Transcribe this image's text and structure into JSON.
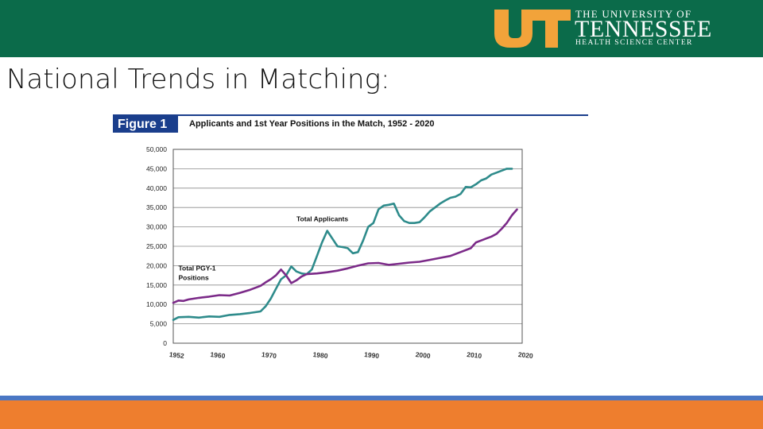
{
  "header": {
    "logo_mark": "UT",
    "logo_line1": "THE UNIVERSITY OF",
    "logo_line2": "TENNESSEE",
    "logo_line3": "HEALTH SCIENCE CENTER"
  },
  "slide": {
    "title": "National Trends in Matching:"
  },
  "colors": {
    "header": "#0b6b4a",
    "logo_orange": "#f2a33a",
    "applicants": "#2e8b8b",
    "positions": "#7b2a88",
    "figure_tab": "#1a3e8c",
    "bottom_blue": "#4a77c4",
    "bottom_orange": "#ee7e2e"
  },
  "chart_data": {
    "type": "line",
    "figure_label": "Figure 1",
    "title": "Applicants and 1st Year Positions in the Match, 1952 - 2020",
    "xlabel": "",
    "ylabel": "",
    "xlim": [
      1952,
      2020
    ],
    "ylim": [
      0,
      50000
    ],
    "grid": true,
    "y_ticks": [
      0,
      5000,
      10000,
      15000,
      20000,
      25000,
      30000,
      35000,
      40000,
      45000,
      50000
    ],
    "y_tick_labels": [
      "0",
      "5,000",
      "10,000",
      "15,000",
      "20,000",
      "25,000",
      "30,000",
      "35,000",
      "40,000",
      "45,000",
      "50,000"
    ],
    "x_ticks": [
      1952,
      1960,
      1970,
      1980,
      1990,
      2000,
      2010,
      2020
    ],
    "x_tick_labels": [
      "1952",
      "1960",
      "1970",
      "1980",
      "1990",
      "2000",
      "2010",
      "2020"
    ],
    "series": [
      {
        "name": "Total Applicants",
        "label_year": 1976,
        "label_value": 31500,
        "points": [
          [
            1952,
            6000
          ],
          [
            1953,
            6700
          ],
          [
            1955,
            6800
          ],
          [
            1957,
            6600
          ],
          [
            1959,
            6900
          ],
          [
            1961,
            6800
          ],
          [
            1963,
            7300
          ],
          [
            1965,
            7500
          ],
          [
            1967,
            7800
          ],
          [
            1969,
            8200
          ],
          [
            1970,
            9500
          ],
          [
            1971,
            11500
          ],
          [
            1972,
            14000
          ],
          [
            1973,
            16500
          ],
          [
            1974,
            17500
          ],
          [
            1975,
            19800
          ],
          [
            1976,
            18500
          ],
          [
            1977,
            18000
          ],
          [
            1978,
            17800
          ],
          [
            1979,
            19000
          ],
          [
            1980,
            22500
          ],
          [
            1981,
            26000
          ],
          [
            1982,
            29000
          ],
          [
            1983,
            27000
          ],
          [
            1984,
            25000
          ],
          [
            1985,
            24800
          ],
          [
            1986,
            24500
          ],
          [
            1987,
            23200
          ],
          [
            1988,
            23500
          ],
          [
            1989,
            26500
          ],
          [
            1990,
            30000
          ],
          [
            1991,
            31000
          ],
          [
            1992,
            34500
          ],
          [
            1993,
            35500
          ],
          [
            1994,
            35700
          ],
          [
            1995,
            36000
          ],
          [
            1996,
            33000
          ],
          [
            1997,
            31500
          ],
          [
            1998,
            31000
          ],
          [
            1999,
            31000
          ],
          [
            2000,
            31200
          ],
          [
            2001,
            32500
          ],
          [
            2002,
            34000
          ],
          [
            2003,
            35000
          ],
          [
            2004,
            36000
          ],
          [
            2005,
            36800
          ],
          [
            2006,
            37500
          ],
          [
            2007,
            37800
          ],
          [
            2008,
            38500
          ],
          [
            2009,
            40300
          ],
          [
            2010,
            40200
          ],
          [
            2011,
            41000
          ],
          [
            2012,
            42000
          ],
          [
            2013,
            42500
          ],
          [
            2014,
            43500
          ],
          [
            2015,
            44000
          ],
          [
            2016,
            44500
          ],
          [
            2017,
            45000
          ],
          [
            2018,
            45000
          ]
        ]
      },
      {
        "name": "Total PGY-1 Positions",
        "label_lines": [
          "Total PGY-1",
          "Positions"
        ],
        "label_year": 1953,
        "label_value": 18800,
        "points": [
          [
            1952,
            10400
          ],
          [
            1953,
            11000
          ],
          [
            1954,
            10900
          ],
          [
            1955,
            11300
          ],
          [
            1957,
            11700
          ],
          [
            1959,
            12000
          ],
          [
            1961,
            12400
          ],
          [
            1963,
            12300
          ],
          [
            1965,
            13000
          ],
          [
            1967,
            13800
          ],
          [
            1969,
            14800
          ],
          [
            1970,
            15700
          ],
          [
            1971,
            16500
          ],
          [
            1972,
            17500
          ],
          [
            1973,
            19000
          ],
          [
            1974,
            17500
          ],
          [
            1975,
            15500
          ],
          [
            1976,
            16200
          ],
          [
            1977,
            17200
          ],
          [
            1978,
            17800
          ],
          [
            1980,
            18000
          ],
          [
            1982,
            18300
          ],
          [
            1984,
            18700
          ],
          [
            1986,
            19300
          ],
          [
            1988,
            20000
          ],
          [
            1990,
            20600
          ],
          [
            1992,
            20700
          ],
          [
            1994,
            20200
          ],
          [
            1996,
            20500
          ],
          [
            1998,
            20800
          ],
          [
            2000,
            21000
          ],
          [
            2002,
            21500
          ],
          [
            2004,
            22000
          ],
          [
            2006,
            22500
          ],
          [
            2008,
            23500
          ],
          [
            2010,
            24500
          ],
          [
            2011,
            26000
          ],
          [
            2012,
            26500
          ],
          [
            2013,
            27000
          ],
          [
            2014,
            27500
          ],
          [
            2015,
            28200
          ],
          [
            2016,
            29500
          ],
          [
            2017,
            31000
          ],
          [
            2018,
            33000
          ],
          [
            2019,
            34500
          ]
        ]
      }
    ]
  }
}
